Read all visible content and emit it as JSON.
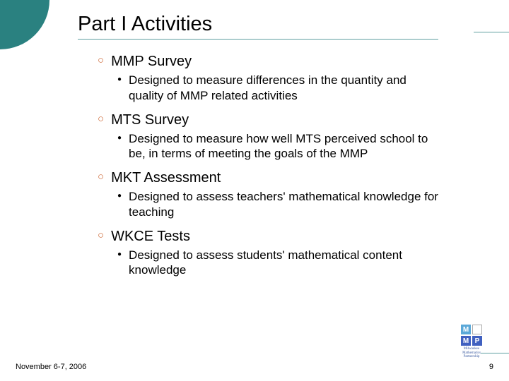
{
  "colors": {
    "circle": "#2a8180",
    "rule": "#5e9fa0",
    "hollow_bullet": "#cc6633",
    "text": "#000000",
    "background": "#ffffff"
  },
  "typography": {
    "title_fontsize": 29,
    "l1_fontsize": 20,
    "l2_fontsize": 17,
    "footer_fontsize": 11
  },
  "title": "Part I Activities",
  "items": [
    {
      "label": "MMP Survey",
      "sub": "Designed to measure differences in the quantity and quality of MMP related activities"
    },
    {
      "label": "MTS Survey",
      "sub": "Designed to measure how well MTS perceived school to be, in terms of meeting the goals of the MMP"
    },
    {
      "label": "MKT Assessment",
      "sub": "Designed to assess teachers' mathematical knowledge for teaching"
    },
    {
      "label": "WKCE Tests",
      "sub": "Designed to assess students' mathematical content knowledge"
    }
  ],
  "footer": {
    "date": "November 6-7, 2006",
    "page": "9"
  },
  "logo": {
    "tl": "M",
    "br": "P",
    "caption": "Milwaukee Mathematics Partnership"
  }
}
